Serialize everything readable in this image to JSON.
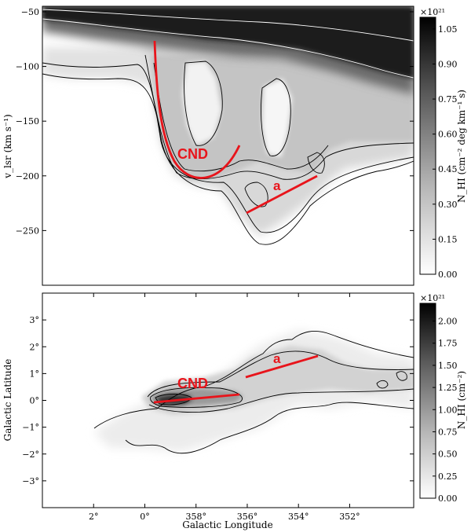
{
  "chart_data": [
    {
      "type": "heatmap",
      "panel": "longitude-velocity",
      "ylabel": "v_lsr (km s⁻¹)",
      "yticks": [
        "−50",
        "−100",
        "−150",
        "−200",
        "−250"
      ],
      "ytick_values": [
        -50,
        -100,
        -150,
        -200,
        -250
      ],
      "ylim": [
        -300,
        -45
      ],
      "colorbar": {
        "label": "N_HI (cm⁻² deg km⁻¹ s)",
        "exponent": "×10²¹",
        "ticks": [
          "0.00",
          "0.15",
          "0.30",
          "0.45",
          "0.60",
          "0.75",
          "0.90",
          "1.05"
        ],
        "tick_values": [
          0,
          0.15,
          0.3,
          0.45,
          0.6,
          0.75,
          0.9,
          1.05
        ],
        "range": [
          0,
          1.1
        ]
      },
      "colormap": "greys",
      "contours": true,
      "annotations": [
        {
          "label": "CND",
          "color": "#e8141b",
          "kind": "curve",
          "points": [
            [
              359.6,
              -78
            ],
            [
              359.2,
              -140
            ],
            [
              358.6,
              -185
            ],
            [
              357.7,
              -203
            ],
            [
              357.0,
              -200
            ],
            [
              356.5,
              -173
            ]
          ]
        },
        {
          "label": "a",
          "color": "#e8141b",
          "kind": "line",
          "points": [
            [
              355.9,
              -235
            ],
            [
              353.8,
              -200
            ]
          ]
        }
      ]
    },
    {
      "type": "heatmap",
      "panel": "longitude-latitude",
      "xlabel": "Galactic Longitude",
      "ylabel": "Galactic Latitude",
      "xticks": [
        "2°",
        "0°",
        "358°",
        "356°",
        "354°",
        "352°"
      ],
      "xtick_values": [
        2,
        0,
        -2,
        -4,
        -6,
        -8
      ],
      "xlim": [
        4,
        -10.5
      ],
      "yticks": [
        "3°",
        "2°",
        "1°",
        "0°",
        "−1°",
        "−2°",
        "−3°"
      ],
      "ytick_values": [
        3,
        2,
        1,
        0,
        -1,
        -2,
        -3
      ],
      "ylim": [
        -4,
        4
      ],
      "colorbar": {
        "label": "N_HI (cm⁻²)",
        "exponent": "×10²¹",
        "ticks": [
          "0.00",
          "0.25",
          "0.50",
          "0.75",
          "1.00",
          "1.25",
          "1.50",
          "1.75",
          "2.00"
        ],
        "tick_values": [
          0,
          0.25,
          0.5,
          0.75,
          1.0,
          1.25,
          1.5,
          1.75,
          2.0
        ],
        "range": [
          0,
          2.2
        ]
      },
      "colormap": "greys",
      "contours": true,
      "annotations": [
        {
          "label": "CND",
          "color": "#e8141b",
          "kind": "line",
          "points": [
            [
              359.5,
              -0.1
            ],
            [
              356.5,
              0.1
            ]
          ]
        },
        {
          "label": "a",
          "color": "#e8141b",
          "kind": "line",
          "points": [
            [
              355.9,
              0.8
            ],
            [
              353.4,
              1.6
            ]
          ]
        }
      ]
    }
  ]
}
